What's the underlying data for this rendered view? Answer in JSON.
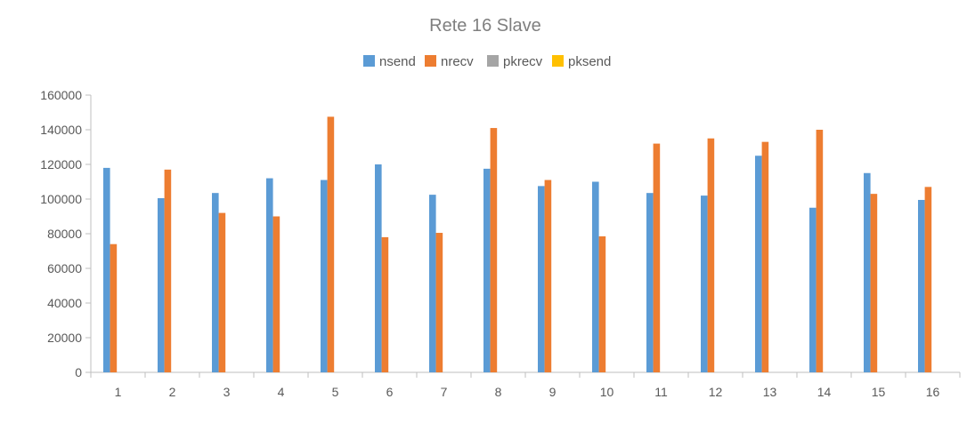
{
  "chart_data": {
    "type": "bar",
    "title": "Rete 16 Slave",
    "xlabel": "",
    "ylabel": "",
    "categories": [
      "1",
      "2",
      "3",
      "4",
      "5",
      "6",
      "7",
      "8",
      "9",
      "10",
      "11",
      "12",
      "13",
      "14",
      "15",
      "16"
    ],
    "ylim": [
      0,
      160000
    ],
    "yticks": [
      0,
      20000,
      40000,
      60000,
      80000,
      100000,
      120000,
      140000,
      160000
    ],
    "grid": false,
    "legend_position": "top",
    "series": [
      {
        "name": "nsend",
        "color": "#5b9bd5",
        "values": [
          118000,
          100500,
          103500,
          112000,
          111000,
          120000,
          102500,
          117500,
          107500,
          110000,
          103500,
          102000,
          125000,
          95000,
          115000,
          99500
        ]
      },
      {
        "name": "nrecv",
        "color": "#ed7d31",
        "values": [
          74000,
          117000,
          92000,
          90000,
          147500,
          78000,
          80500,
          141000,
          111000,
          78500,
          132000,
          135000,
          133000,
          140000,
          103000,
          107000
        ]
      },
      {
        "name": "pkrecv",
        "color": "#a5a5a5",
        "values": [
          0,
          0,
          0,
          0,
          0,
          0,
          0,
          0,
          0,
          0,
          0,
          0,
          0,
          0,
          0,
          0
        ]
      },
      {
        "name": "pksend",
        "color": "#ffc000",
        "values": [
          0,
          0,
          0,
          0,
          0,
          0,
          0,
          0,
          0,
          0,
          0,
          0,
          0,
          0,
          0,
          0
        ]
      }
    ]
  }
}
